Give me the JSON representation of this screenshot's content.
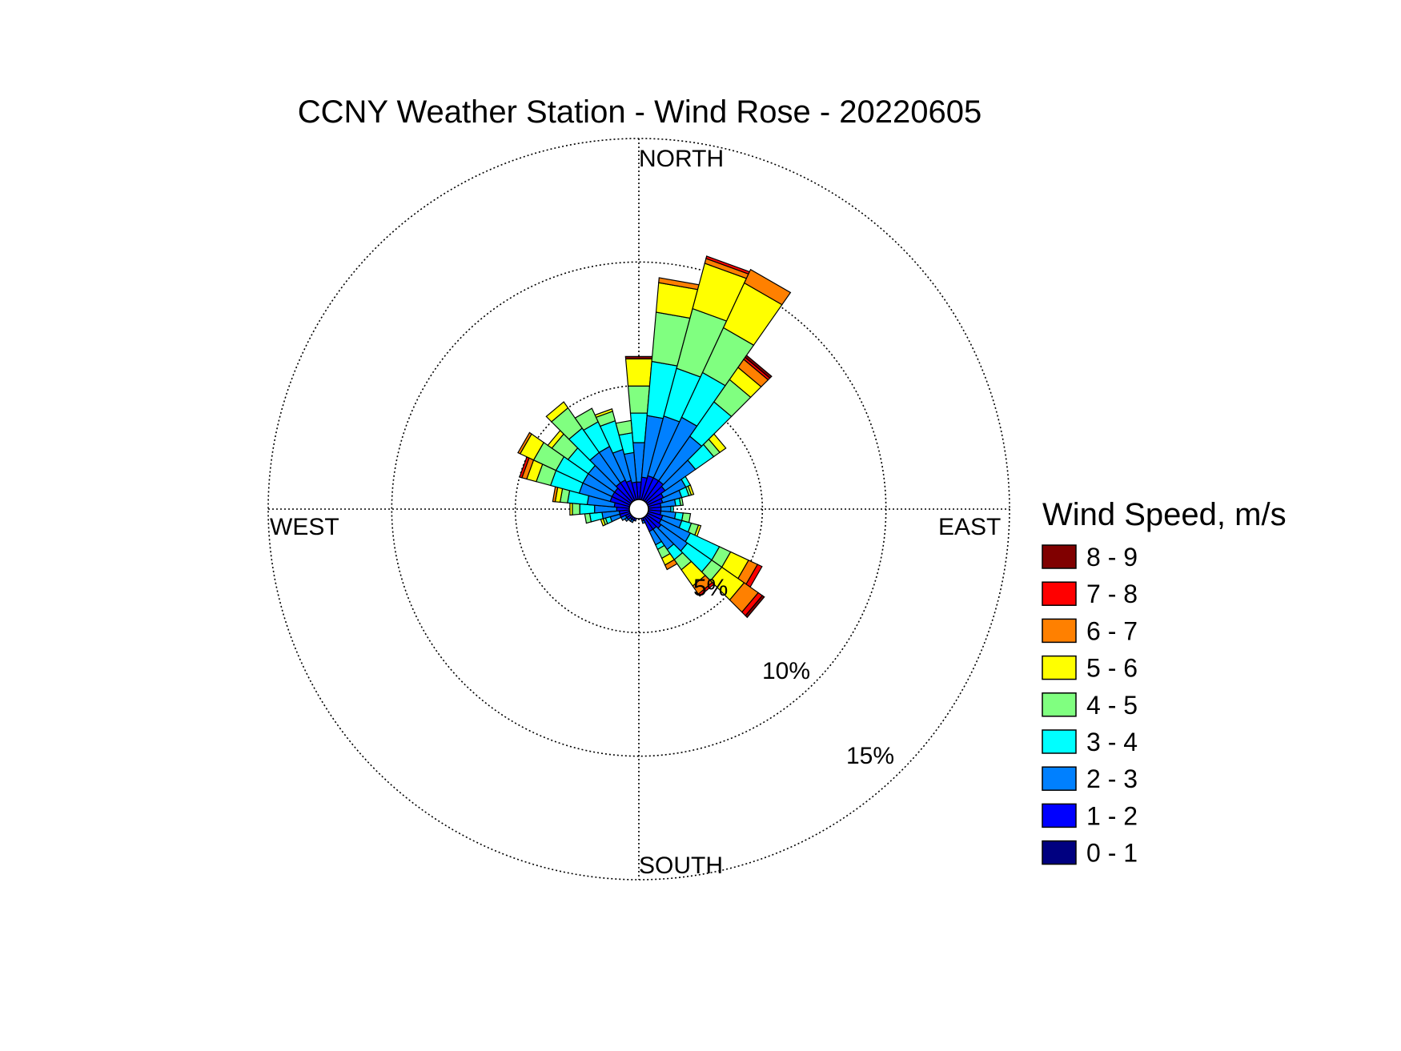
{
  "chart_data": {
    "type": "wind-rose",
    "title": "CCNY Weather Station - Wind Rose - 20220605",
    "direction_labels": {
      "north": "NORTH",
      "south": "SOUTH",
      "east": "EAST",
      "west": "WEST"
    },
    "ring_labels": [
      "5%",
      "10%",
      "15%"
    ],
    "ring_values": [
      5,
      10,
      15
    ],
    "radial_max": 15,
    "legend": {
      "title": "Wind Speed, m/s",
      "placement": "right",
      "bins": [
        {
          "label": "8 - 9",
          "color": "#800000"
        },
        {
          "label": "7 - 8",
          "color": "#ff0000"
        },
        {
          "label": "6 - 7",
          "color": "#ff8000"
        },
        {
          "label": "5 - 6",
          "color": "#ffff00"
        },
        {
          "label": "4 - 5",
          "color": "#80ff80"
        },
        {
          "label": "3 - 4",
          "color": "#00ffff"
        },
        {
          "label": "2 - 3",
          "color": "#0080ff"
        },
        {
          "label": "1 - 2",
          "color": "#0000ff"
        },
        {
          "label": "0 - 1",
          "color": "#000080"
        }
      ]
    },
    "speed_bins_low_to_high": [
      "0 - 1",
      "1 - 2",
      "2 - 3",
      "3 - 4",
      "4 - 5",
      "5 - 6",
      "6 - 7",
      "7 - 8",
      "8 - 9"
    ],
    "sector_width_deg": 10,
    "sectors": [
      {
        "dir": 0,
        "values": [
          0.4,
          0.7,
          1.6,
          1.2,
          1.1,
          1.1,
          0,
          0,
          0.1
        ]
      },
      {
        "dir": 10,
        "values": [
          0.4,
          0.9,
          2.5,
          2.2,
          2.0,
          1.2,
          0.2,
          0,
          0
        ]
      },
      {
        "dir": 20,
        "values": [
          0.4,
          1.0,
          2.5,
          2.0,
          2.5,
          1.9,
          0.2,
          0.1,
          0
        ]
      },
      {
        "dir": 30,
        "values": [
          0.4,
          1.0,
          2.7,
          2.0,
          2.0,
          2.0,
          0.6,
          0,
          0
        ]
      },
      {
        "dir": 40,
        "values": [
          0.4,
          1.0,
          2.2,
          1.7,
          1.1,
          0.6,
          0.4,
          0.1,
          0.1
        ]
      },
      {
        "dir": 50,
        "values": [
          0.4,
          0.9,
          1.5,
          0.9,
          0.3,
          0.3,
          0,
          0,
          0
        ]
      },
      {
        "dir": 60,
        "values": [
          0.4,
          0.7,
          1.0,
          0.2,
          0,
          0,
          0,
          0,
          0
        ]
      },
      {
        "dir": 70,
        "values": [
          0.4,
          0.6,
          0.8,
          0.3,
          0.1,
          0.1,
          0,
          0,
          0
        ]
      },
      {
        "dir": 80,
        "values": [
          0.4,
          0.5,
          0.6,
          0.2,
          0.1,
          0,
          0,
          0,
          0
        ]
      },
      {
        "dir": 90,
        "values": [
          0.4,
          0.5,
          0.4,
          0.1,
          0,
          0,
          0,
          0,
          0
        ]
      },
      {
        "dir": 100,
        "values": [
          0.4,
          0.5,
          0.6,
          0.3,
          0.3,
          0,
          0,
          0,
          0
        ]
      },
      {
        "dir": 110,
        "values": [
          0.4,
          0.6,
          0.8,
          0.4,
          0.3,
          0.1,
          0,
          0,
          0
        ]
      },
      {
        "dir": 120,
        "values": [
          0.4,
          0.6,
          1.3,
          1.3,
          0.5,
          0.8,
          0.4,
          0.2,
          0
        ]
      },
      {
        "dir": 130,
        "values": [
          0.4,
          0.7,
          1.3,
          1.2,
          0.5,
          1.1,
          0.7,
          0.2,
          0.1
        ]
      },
      {
        "dir": 140,
        "values": [
          0.4,
          0.6,
          1.0,
          0.5,
          0.5,
          0.8,
          0.4,
          0.1,
          0
        ]
      },
      {
        "dir": 150,
        "values": [
          0.4,
          0.6,
          0.6,
          0.2,
          0.4,
          0.3,
          0.2,
          0,
          0
        ]
      },
      {
        "dir": 160,
        "values": [
          0.3,
          0.2,
          0.1,
          0,
          0,
          0,
          0,
          0,
          0
        ]
      },
      {
        "dir": 170,
        "values": [
          0.2,
          0.1,
          0,
          0,
          0,
          0,
          0,
          0,
          0
        ]
      },
      {
        "dir": 180,
        "values": [
          0.2,
          0.1,
          0,
          0,
          0,
          0,
          0,
          0,
          0
        ]
      },
      {
        "dir": 190,
        "values": [
          0.2,
          0.1,
          0,
          0,
          0,
          0,
          0,
          0,
          0
        ]
      },
      {
        "dir": 200,
        "values": [
          0.3,
          0.2,
          0,
          0,
          0,
          0,
          0,
          0,
          0
        ]
      },
      {
        "dir": 210,
        "values": [
          0.3,
          0.2,
          0.1,
          0,
          0,
          0,
          0,
          0,
          0
        ]
      },
      {
        "dir": 220,
        "values": [
          0.3,
          0.2,
          0.1,
          0,
          0,
          0,
          0,
          0,
          0
        ]
      },
      {
        "dir": 230,
        "values": [
          0.3,
          0.3,
          0.1,
          0,
          0,
          0,
          0,
          0,
          0
        ]
      },
      {
        "dir": 240,
        "values": [
          0.3,
          0.3,
          0.2,
          0,
          0,
          0,
          0,
          0,
          0
        ]
      },
      {
        "dir": 250,
        "values": [
          0.3,
          0.5,
          0.4,
          0.2,
          0.1,
          0.1,
          0,
          0,
          0
        ]
      },
      {
        "dir": 260,
        "values": [
          0.3,
          0.5,
          0.7,
          0.5,
          0.2,
          0,
          0,
          0,
          0
        ]
      },
      {
        "dir": 270,
        "values": [
          0.3,
          0.6,
          0.9,
          0.6,
          0.3,
          0.1,
          0,
          0,
          0
        ]
      },
      {
        "dir": 280,
        "values": [
          0.3,
          0.7,
          1.1,
          0.8,
          0.3,
          0.2,
          0.1,
          0,
          0
        ]
      },
      {
        "dir": 290,
        "values": [
          0.4,
          0.8,
          1.3,
          1.2,
          0.6,
          0.4,
          0.2,
          0.1,
          0
        ]
      },
      {
        "dir": 300,
        "values": [
          0.4,
          0.8,
          1.3,
          1.2,
          1.0,
          0.6,
          0.1,
          0,
          0
        ]
      },
      {
        "dir": 310,
        "values": [
          0.4,
          0.8,
          1.3,
          1.0,
          0.8,
          0.2,
          0,
          0,
          0
        ]
      },
      {
        "dir": 320,
        "values": [
          0.4,
          0.9,
          1.5,
          1.2,
          1.0,
          0.3,
          0,
          0,
          0
        ]
      },
      {
        "dir": 330,
        "values": [
          0.4,
          0.9,
          1.5,
          1.1,
          0.6,
          0,
          0,
          0,
          0
        ]
      },
      {
        "dir": 340,
        "values": [
          0.4,
          0.8,
          1.3,
          1.2,
          0.4,
          0.1,
          0,
          0,
          0
        ]
      },
      {
        "dir": 350,
        "values": [
          0.4,
          0.7,
          1.2,
          0.8,
          0.5,
          0,
          0,
          0,
          0
        ]
      }
    ]
  }
}
